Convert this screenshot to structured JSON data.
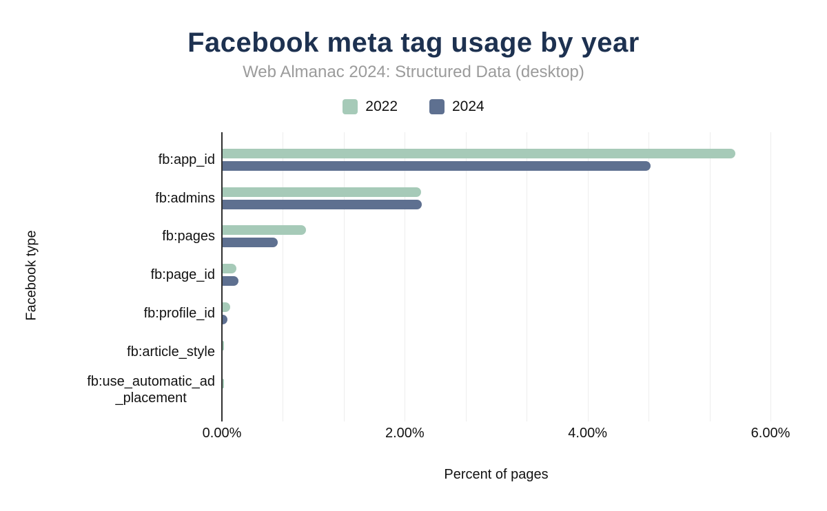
{
  "header": {
    "title": "Facebook meta tag usage by year",
    "subtitle": "Web Almanac 2024: Structured Data (desktop)"
  },
  "legend": [
    {
      "label": "2022",
      "color": "#a6cab8"
    },
    {
      "label": "2024",
      "color": "#5e7090"
    }
  ],
  "colors": {
    "series_2022": "#a6cab8",
    "series_2024": "#5e7090",
    "title": "#1d3150",
    "subtitle": "#9b9b9b",
    "axis_line": "#2f2f2f",
    "gridline": "#ededed"
  },
  "chart_data": {
    "type": "bar",
    "orientation": "horizontal",
    "title": "Facebook meta tag usage by year",
    "subtitle": "Web Almanac 2024: Structured Data (desktop)",
    "categories": [
      "fb:app_id",
      "fb:admins",
      "fb:pages",
      "fb:page_id",
      "fb:profile_id",
      "fb:article_style",
      "fb:use_automatic_ad_placement"
    ],
    "label_lines": [
      [
        "fb:app_id"
      ],
      [
        "fb:admins"
      ],
      [
        "fb:pages"
      ],
      [
        "fb:page_id"
      ],
      [
        "fb:profile_id"
      ],
      [
        "fb:article_style"
      ],
      [
        "fb:use_automatic_ad",
        "_placement"
      ]
    ],
    "series": [
      {
        "name": "2022",
        "color": "#a6cab8",
        "values": [
          5.61,
          2.17,
          0.91,
          0.15,
          0.08,
          0.01,
          0.01
        ]
      },
      {
        "name": "2024",
        "color": "#5e7090",
        "values": [
          4.68,
          2.18,
          0.6,
          0.17,
          0.05,
          0.0,
          0.0
        ]
      }
    ],
    "xlabel": "Percent of pages",
    "ylabel": "Facebook type",
    "xlim": [
      0,
      6
    ],
    "x_ticks": [
      {
        "value": 0,
        "label": "0.00%"
      },
      {
        "value": 2,
        "label": "2.00%"
      },
      {
        "value": 4,
        "label": "4.00%"
      },
      {
        "value": 6,
        "label": "6.00%"
      }
    ],
    "gridline_step": 0.6666667,
    "grid": true,
    "legend_position": "top"
  }
}
